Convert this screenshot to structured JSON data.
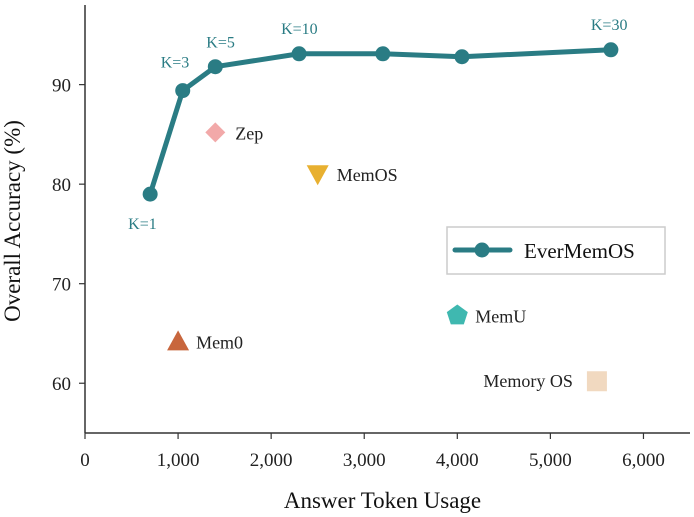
{
  "chart_data": {
    "type": "scatter",
    "xlabel": "Answer Token Usage",
    "ylabel": "Overall Accuracy (%)",
    "xlim": [
      0,
      6500
    ],
    "ylim": [
      55,
      98
    ],
    "xticks": [
      0,
      1000,
      2000,
      3000,
      4000,
      5000,
      6000
    ],
    "xtick_labels": [
      "0",
      "1,000",
      "2,000",
      "3,000",
      "4,000",
      "5,000",
      "6,000"
    ],
    "yticks": [
      60,
      70,
      80,
      90
    ],
    "ytick_labels": [
      "60",
      "70",
      "80",
      "90"
    ],
    "grid": false,
    "legend_position": "center-right",
    "line_series": {
      "name": "EverMemOS",
      "color": "#2a7c84",
      "points": [
        {
          "x": 700,
          "y": 79.0,
          "label": "K=1"
        },
        {
          "x": 1050,
          "y": 89.4,
          "label": "K=3"
        },
        {
          "x": 1400,
          "y": 91.8,
          "label": "K=5"
        },
        {
          "x": 2300,
          "y": 93.1,
          "label": "K=10"
        },
        {
          "x": 3200,
          "y": 93.1,
          "label": ""
        },
        {
          "x": 4050,
          "y": 92.8,
          "label": ""
        },
        {
          "x": 5650,
          "y": 93.5,
          "label": "K=30"
        }
      ]
    },
    "baselines": [
      {
        "name": "Zep",
        "x": 1400,
        "y": 85.2,
        "marker": "diamond",
        "color": "#f2a9a9"
      },
      {
        "name": "MemOS",
        "x": 2500,
        "y": 81.0,
        "marker": "triangle-down",
        "color": "#e8b030"
      },
      {
        "name": "Mem0",
        "x": 1000,
        "y": 64.2,
        "marker": "triangle-up",
        "color": "#c8663d"
      },
      {
        "name": "MemU",
        "x": 4000,
        "y": 66.8,
        "marker": "pentagon",
        "color": "#3fb8b0"
      },
      {
        "name": "Memory OS",
        "x": 5500,
        "y": 60.2,
        "marker": "square",
        "color": "#f1d9c0"
      }
    ]
  }
}
